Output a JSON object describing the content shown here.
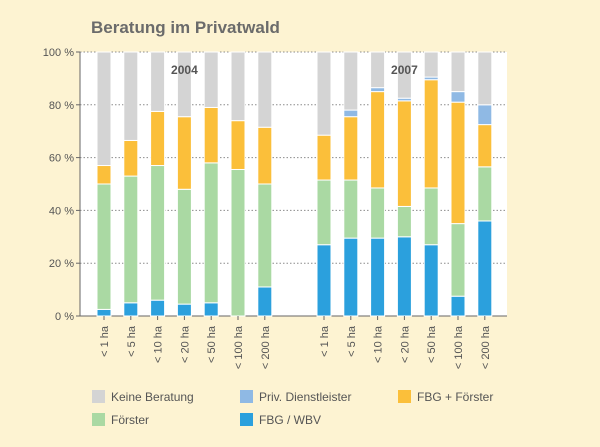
{
  "chart_data": {
    "type": "bar",
    "stacked": true,
    "title": "Beratung im Privatwald",
    "ylim": [
      0,
      100
    ],
    "yticks": [
      0,
      20,
      40,
      60,
      80,
      100
    ],
    "ytick_labels": [
      "0 %",
      "20 %",
      "40 %",
      "60 %",
      "80 %",
      "100 %"
    ],
    "grid": true,
    "groups": [
      {
        "label": "2004",
        "categories": [
          "< 1 ha",
          "< 5 ha",
          "< 10 ha",
          "< 20 ha",
          "< 50 ha",
          "< 100 ha",
          "< 200 ha"
        ],
        "series": [
          {
            "name": "FBG / WBV",
            "values": [
              2.5,
              5,
              6,
              4.5,
              5,
              0,
              11
            ]
          },
          {
            "name": "Förster",
            "values": [
              47.5,
              48,
              51,
              43.5,
              53,
              55.5,
              39
            ]
          },
          {
            "name": "FBG + Förster",
            "values": [
              7,
              13.5,
              20.5,
              27.5,
              21,
              18.5,
              21.5
            ]
          },
          {
            "name": "Priv. Dienstleister",
            "values": [
              0,
              0,
              0,
              0,
              0,
              0,
              0
            ]
          },
          {
            "name": "Keine Beratung",
            "values": [
              43,
              33.5,
              22.5,
              24.5,
              21,
              26,
              28.5
            ]
          }
        ]
      },
      {
        "label": "2007",
        "categories": [
          "< 1 ha",
          "< 5 ha",
          "< 10 ha",
          "< 20 ha",
          "< 50 ha",
          "< 100 ha",
          "< 200 ha"
        ],
        "series": [
          {
            "name": "FBG / WBV",
            "values": [
              27,
              29.5,
              29.5,
              30,
              27,
              7.5,
              36
            ]
          },
          {
            "name": "Förster",
            "values": [
              24.5,
              22,
              19,
              11.5,
              21.5,
              27.5,
              20.5
            ]
          },
          {
            "name": "FBG + Förster",
            "values": [
              17,
              24,
              36.5,
              40,
              41,
              46,
              16
            ]
          },
          {
            "name": "Priv. Dienstleister",
            "values": [
              0,
              2.5,
              1.5,
              1,
              1,
              4,
              7.5
            ]
          },
          {
            "name": "Keine Beratung",
            "values": [
              31.5,
              22,
              13.5,
              17.5,
              9.5,
              15,
              20
            ]
          }
        ]
      }
    ],
    "legend_position": "bottom",
    "legend": [
      {
        "name": "Keine Beratung",
        "color": "#d4d4d4"
      },
      {
        "name": "Priv. Dienstleister",
        "color": "#8fb9e4"
      },
      {
        "name": "FBG + Förster",
        "color": "#fbbf3a"
      },
      {
        "name": "Förster",
        "color": "#aad9a3"
      },
      {
        "name": "FBG / WBV",
        "color": "#2ba0dd"
      }
    ],
    "colors": {
      "FBG / WBV": "#2ba0dd",
      "Förster": "#aad9a3",
      "FBG + Förster": "#fbbf3a",
      "Priv. Dienstleister": "#8fb9e4",
      "Keine Beratung": "#d4d4d4"
    }
  }
}
